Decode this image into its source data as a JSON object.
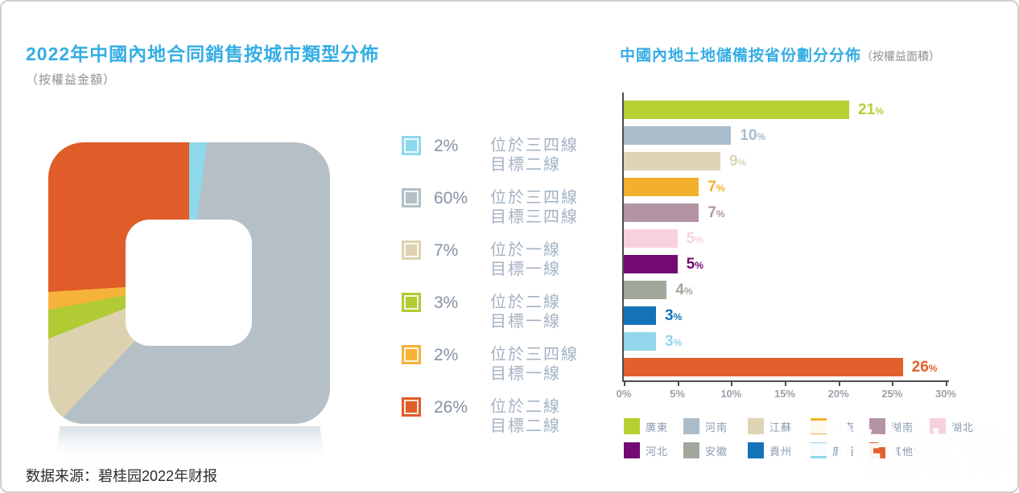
{
  "page": {
    "source": "数据来源：碧桂园2022年财报",
    "watermark": "钛媒体"
  },
  "left_chart": {
    "title": "2022年中國內地合同銷售按城市類型分佈",
    "subtitle": "（按權益金額）"
  },
  "right_chart": {
    "title": "中國內地土地儲備按省份劃分分佈",
    "subtitle": "（按權益面積）"
  },
  "chart_data": [
    {
      "type": "pie",
      "title": "2022年中國內地合同銷售按城市類型分佈",
      "subtitle": "（按權益金額）",
      "labels": [
        "位於三四線\n目標二線",
        "位於三四線\n目標三四線",
        "位於一線\n目標一線",
        "位於二線\n目標一線",
        "位於三四線\n目標一線",
        "位於二線\n目標二線"
      ],
      "values": [
        2,
        60,
        7,
        3,
        2,
        26
      ],
      "unit": "%",
      "colors": [
        "#8ed8ec",
        "#b5bfc6",
        "#ddd2b0",
        "#b0cb33",
        "#f6b33a",
        "#e05c28"
      ],
      "legend_position": "right",
      "shape": "rounded-square-donut"
    },
    {
      "type": "bar",
      "orientation": "horizontal",
      "title": "中國內地土地儲備按省份劃分分佈",
      "subtitle": "（按權益面積）",
      "categories": [
        "廣東",
        "河南",
        "江蘇",
        "山東",
        "湖南",
        "湖北",
        "河北",
        "安徽",
        "貴州",
        "廣西",
        "其他*"
      ],
      "values": [
        21,
        10,
        9,
        7,
        7,
        5,
        5,
        4,
        3,
        3,
        26
      ],
      "unit": "%",
      "colors": [
        "#b8cf33",
        "#a9bccb",
        "#ddd5b6",
        "#f2b02c",
        "#b394a5",
        "#f7d2de",
        "#730b72",
        "#a0a89b",
        "#1472b9",
        "#93d5ea",
        "#e2602c"
      ],
      "xlabel": "",
      "ylabel": "",
      "xlim": [
        0,
        30
      ],
      "x_ticks": [
        "0%",
        "5%",
        "10%",
        "15%",
        "20%",
        "25%",
        "30%"
      ],
      "grid": false,
      "legend_position": "bottom"
    }
  ]
}
